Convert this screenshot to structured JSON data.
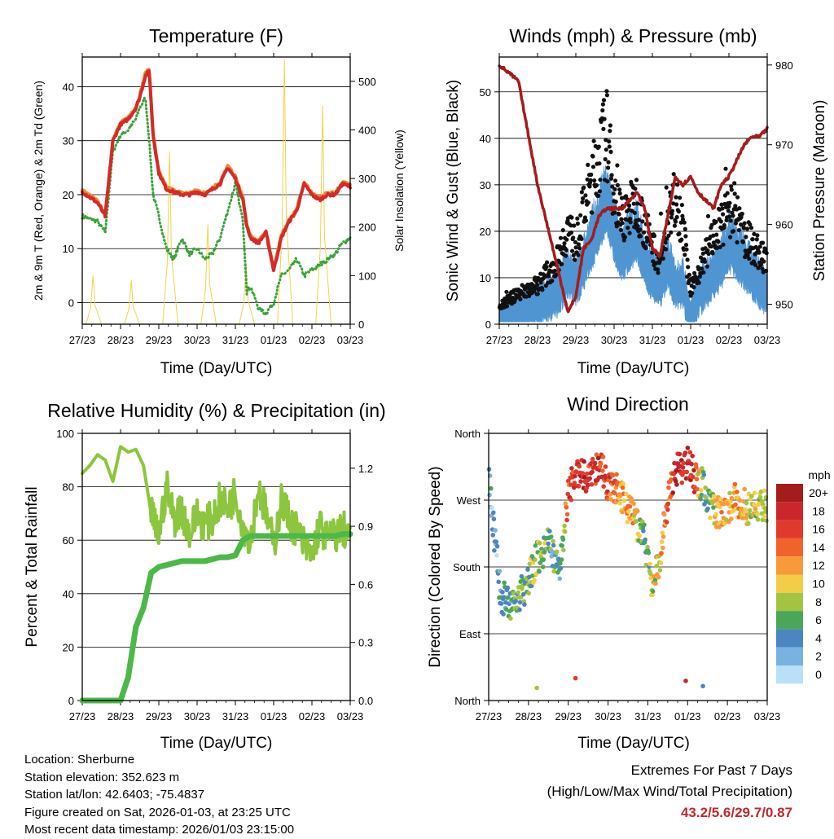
{
  "figure": {
    "x_ticks": [
      "27/23",
      "28/23",
      "29/23",
      "30/23",
      "31/23",
      "01/23",
      "02/23",
      "03/23"
    ],
    "x_label": "Time (Day/UTC)",
    "colors": {
      "temp_2m": "#d42a2a",
      "temp_9m": "#f08a2c",
      "dewpoint": "#3aa33a",
      "solar": "#f5d24a",
      "wind": "#4f95d2",
      "gust": "#111111",
      "pressure": "#a51c1c",
      "rh": "#8cc63f",
      "precip": "#4cb848"
    }
  },
  "chart_data": [
    {
      "id": "temperature",
      "type": "line",
      "title": "Temperature (F)",
      "xlabel": "Time (Day/UTC)",
      "ylabel_left": "2m & 9m T (Red, Orange) & 2m Td (Green)",
      "ylabel_right": "Solar Insolation (Yellow)",
      "ylim_left": [
        -4,
        45.5
      ],
      "ylim_right": [
        0,
        550
      ],
      "yticks_left": [
        0,
        10,
        20,
        30,
        40
      ],
      "yticks_right": [
        0,
        100,
        200,
        300,
        400,
        500
      ],
      "x": [
        0,
        0.2,
        0.4,
        0.6,
        0.8,
        1,
        1.2,
        1.4,
        1.5,
        1.65,
        1.75,
        1.85,
        2,
        2.2,
        2.4,
        2.6,
        2.8,
        3,
        3.2,
        3.4,
        3.6,
        3.8,
        4,
        4.2,
        4.3,
        4.4,
        4.6,
        4.8,
        5,
        5.2,
        5.4,
        5.6,
        5.8,
        6,
        6.2,
        6.4,
        6.6,
        6.8,
        7
      ],
      "series": [
        {
          "name": "2m T",
          "values": [
            20.5,
            19.5,
            18.5,
            16,
            30,
            33,
            34,
            36,
            38,
            42,
            43,
            31,
            24,
            21,
            20.5,
            20,
            20,
            20.5,
            20,
            21,
            22,
            25,
            23,
            19,
            14,
            12,
            11,
            13,
            6,
            12,
            15,
            17,
            22,
            20,
            19,
            20,
            20,
            22,
            21.5
          ]
        },
        {
          "name": "9m T",
          "values": [
            20.8,
            19.8,
            18.8,
            16.3,
            30.3,
            33.3,
            34.3,
            36.3,
            38.3,
            42.5,
            43.2,
            31.3,
            24.3,
            21.3,
            20.8,
            20.3,
            20.3,
            20.8,
            20.3,
            21.3,
            22.3,
            25.3,
            23.3,
            19.3,
            14.3,
            12.3,
            11.3,
            13.3,
            6.3,
            12.3,
            15.3,
            17.3,
            22.3,
            20.3,
            19.3,
            20.3,
            20.3,
            22.3,
            21.8
          ]
        },
        {
          "name": "2m Td",
          "values": [
            16,
            15.5,
            15,
            13,
            28,
            31,
            32,
            34,
            36,
            38,
            30,
            20,
            16,
            10,
            8,
            12,
            9,
            10,
            8,
            9,
            12,
            17,
            22,
            15,
            2,
            3,
            -1,
            -2,
            0,
            5,
            6,
            8,
            5,
            6,
            7,
            8,
            9,
            11,
            12
          ]
        }
      ],
      "solar": {
        "peak_days": [
          0.3,
          1.3,
          2.3,
          3.3,
          4.3,
          5.3,
          6.3
        ],
        "peaks": [
          100,
          90,
          355,
          205,
          125,
          545,
          450
        ]
      }
    },
    {
      "id": "winds",
      "type": "scatter",
      "title": "Winds (mph) & Pressure (mb)",
      "xlabel": "Time (Day/UTC)",
      "ylabel_left": "Sonic Wind & Gust (Blue, Black)",
      "ylabel_right": "Station Pressure (Maroon)",
      "ylim_left": [
        0,
        57.5
      ],
      "ylim_right": [
        947.5,
        981
      ],
      "yticks_left": [
        0,
        10,
        20,
        30,
        40,
        50
      ],
      "yticks_right": [
        950,
        960,
        970,
        980
      ],
      "x": [
        0,
        0.5,
        1,
        1.5,
        1.8,
        2,
        2.2,
        2.4,
        2.6,
        2.8,
        3,
        3.2,
        3.4,
        3.6,
        3.8,
        4,
        4.2,
        4.4,
        4.6,
        4.8,
        5,
        5.2,
        5.4,
        5.6,
        5.8,
        6,
        6.2,
        6.4,
        6.6,
        6.8,
        7
      ],
      "series": [
        {
          "name": "Sonic Wind",
          "values": [
            2,
            4,
            6,
            8,
            12,
            10,
            14,
            18,
            22,
            26,
            20,
            16,
            18,
            20,
            14,
            12,
            10,
            14,
            10,
            10,
            3,
            8,
            10,
            12,
            14,
            18,
            16,
            14,
            12,
            10,
            8
          ]
        },
        {
          "name": "Gust",
          "values": [
            4,
            7,
            9,
            14,
            22,
            18,
            26,
            32,
            38,
            44,
            30,
            24,
            26,
            28,
            22,
            18,
            14,
            22,
            30,
            22,
            7,
            12,
            16,
            20,
            22,
            26,
            24,
            20,
            18,
            16,
            14
          ]
        },
        {
          "name": "Pressure",
          "values": [
            980,
            978,
            965,
            955,
            949,
            951,
            957,
            958,
            961,
            962,
            962,
            962,
            963,
            964,
            962,
            957,
            956,
            961,
            966,
            965,
            966,
            964,
            963,
            962,
            965,
            966,
            968,
            970,
            971,
            971,
            972
          ]
        }
      ]
    },
    {
      "id": "humidity",
      "type": "line",
      "title": "Relative Humidity (%) & Precipitation (in)",
      "xlabel": "Time (Day/UTC)",
      "ylabel_left": "Percent & Total Rainfall",
      "ylim_left": [
        0,
        100
      ],
      "ylim_right": [
        0,
        1.38
      ],
      "yticks_left": [
        0,
        20,
        40,
        60,
        80,
        100
      ],
      "yticks_right": [
        "0.0",
        "0.3",
        "0.6",
        "0.9",
        "1.2"
      ],
      "x": [
        0,
        0.2,
        0.4,
        0.6,
        0.8,
        1,
        1.2,
        1.4,
        1.6,
        1.8,
        2,
        2.2,
        2.4,
        2.6,
        2.8,
        3,
        3.2,
        3.4,
        3.6,
        3.8,
        4,
        4.2,
        4.4,
        4.6,
        4.8,
        5,
        5.2,
        5.4,
        5.6,
        5.8,
        6,
        6.2,
        6.4,
        6.6,
        6.8,
        7
      ],
      "series": [
        {
          "name": "RH",
          "values": [
            85,
            88,
            92,
            90,
            82,
            95,
            93,
            94,
            88,
            70,
            62,
            80,
            68,
            72,
            62,
            70,
            66,
            68,
            75,
            72,
            78,
            66,
            60,
            80,
            70,
            58,
            75,
            68,
            64,
            58,
            54,
            66,
            60,
            62,
            64,
            63
          ]
        },
        {
          "name": "Precip",
          "values": [
            0,
            0,
            0,
            0,
            0,
            0,
            0.12,
            0.38,
            0.48,
            0.66,
            0.69,
            0.7,
            0.71,
            0.72,
            0.72,
            0.72,
            0.72,
            0.73,
            0.74,
            0.74,
            0.75,
            0.83,
            0.85,
            0.85,
            0.85,
            0.85,
            0.85,
            0.85,
            0.85,
            0.85,
            0.85,
            0.85,
            0.85,
            0.85,
            0.86,
            0.86
          ]
        }
      ]
    },
    {
      "id": "direction",
      "type": "scatter",
      "title": "Wind Direction",
      "xlabel": "Time (Day/UTC)",
      "ylabel": "Direction (Colored By Speed)",
      "yticks": [
        "North",
        "East",
        "South",
        "West",
        "North"
      ],
      "ylim": [
        0,
        360
      ],
      "x": [
        0,
        0.3,
        0.6,
        0.9,
        1.2,
        1.5,
        1.8,
        2,
        2.2,
        2.5,
        2.8,
        3,
        3.3,
        3.6,
        3.9,
        4.1,
        4.3,
        4.5,
        4.7,
        5,
        5.2,
        5.4,
        5.6,
        5.8,
        6,
        6.2,
        6.5,
        6.8,
        7
      ],
      "series": [
        {
          "name": "Direction",
          "values": [
            300,
            140,
            130,
            150,
            190,
            210,
            180,
            280,
            310,
            300,
            320,
            290,
            280,
            250,
            220,
            150,
            190,
            270,
            310,
            320,
            300,
            290,
            260,
            250,
            260,
            270,
            260,
            260,
            265
          ]
        },
        {
          "name": "Speed",
          "values": [
            2,
            4,
            6,
            6,
            8,
            6,
            5,
            14,
            18,
            18,
            16,
            16,
            12,
            12,
            6,
            8,
            10,
            14,
            18,
            18,
            16,
            4,
            8,
            12,
            10,
            12,
            10,
            8,
            8
          ]
        }
      ],
      "legend": {
        "title": "mph",
        "labels": [
          "20+",
          "18",
          "16",
          "14",
          "12",
          "10",
          "8",
          "6",
          "4",
          "2",
          "0"
        ],
        "colors": [
          "#a51c1c",
          "#c9272b",
          "#e03a2c",
          "#f0642c",
          "#f89a3c",
          "#f4cd46",
          "#a2c443",
          "#4ca659",
          "#4b86c0",
          "#79b2e0",
          "#b9e0f6"
        ]
      }
    }
  ],
  "station": {
    "location": "Location: Sherburne",
    "elevation": "Station elevation: 352.623 m",
    "latlon": "Station lat/lon: 42.6403; -75.4837",
    "created": "Figure created on Sat, 2026-01-03, at 23:25 UTC",
    "recent": "Most recent data timestamp: 2026/01/03 23:15:00"
  },
  "extremes": {
    "title": "Extremes For Past 7 Days",
    "subtitle": "(High/Low/Max Wind/Total Precipitation)",
    "values": "43.2/5.6/29.7/0.87"
  }
}
